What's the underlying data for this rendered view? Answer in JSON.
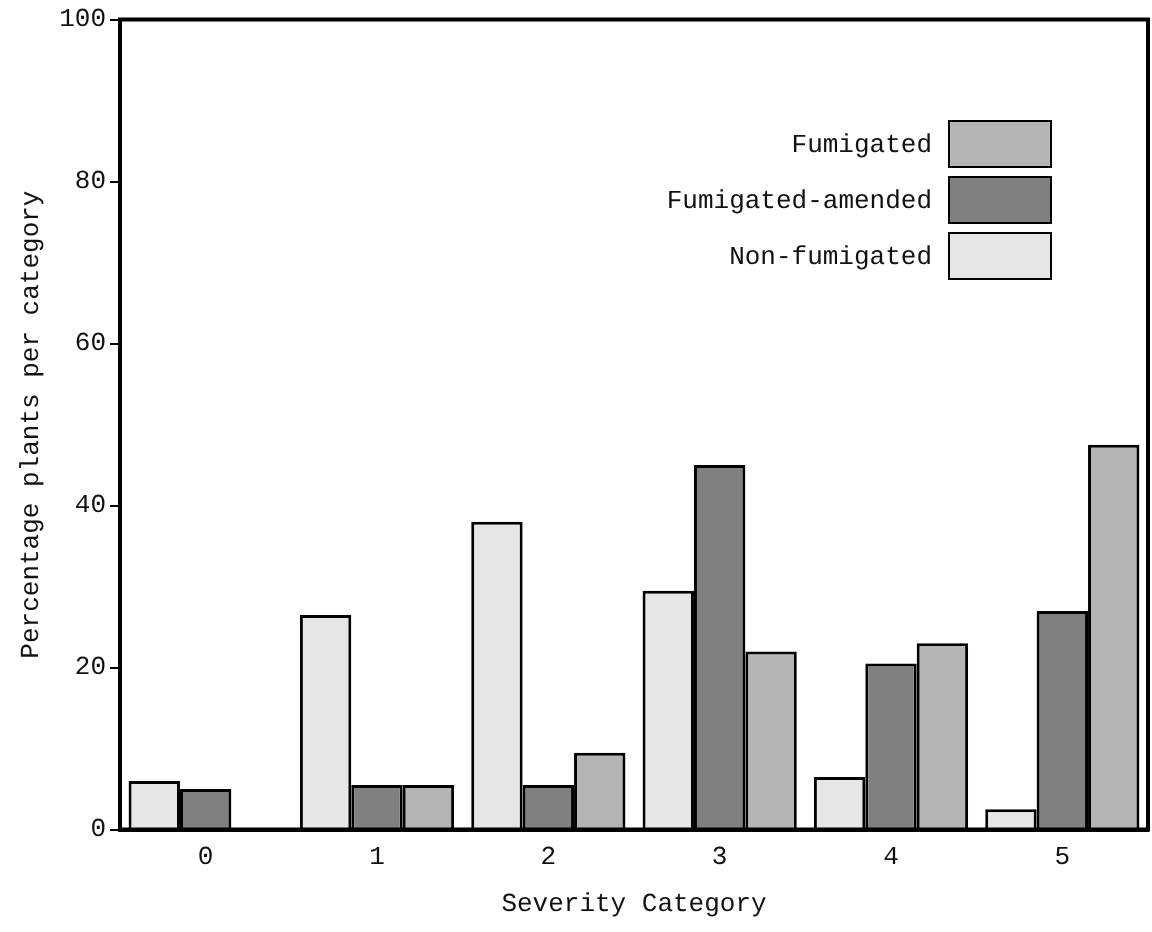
{
  "chart_data": {
    "type": "bar",
    "xlabel": "Severity Category",
    "ylabel": "Percentage plants per category",
    "categories": [
      "0",
      "1",
      "2",
      "3",
      "4",
      "5"
    ],
    "series": [
      {
        "name": "Non-fumigated",
        "color": "#e6e6e6",
        "values": [
          6,
          26.5,
          38,
          29.5,
          6.5,
          2.5
        ]
      },
      {
        "name": "Fumigated-amended",
        "color": "#808080",
        "values": [
          5,
          5.5,
          5.5,
          45,
          20.5,
          27
        ]
      },
      {
        "name": "Fumigated",
        "color": "#b4b4b4",
        "values": [
          0,
          5.5,
          9.5,
          22,
          23,
          47.5
        ]
      }
    ],
    "ylim": [
      0,
      100
    ],
    "yticks": [
      0,
      20,
      40,
      60,
      80,
      100
    ],
    "grid": false,
    "legend": "top right"
  }
}
